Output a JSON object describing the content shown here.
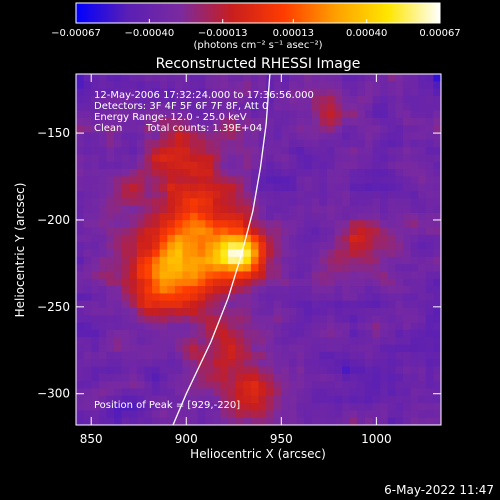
{
  "chart_data": {
    "type": "heatmap",
    "title": "Reconstructed RHESSI Image",
    "xlabel": "Heliocentric X (arcsec)",
    "ylabel": "Heliocentric Y (arcsec)",
    "xlim": [
      842,
      1034
    ],
    "ylim": [
      -318,
      -116
    ],
    "x_ticks": [
      850,
      900,
      950,
      1000
    ],
    "y_ticks": [
      -300,
      -250,
      -200,
      -150
    ],
    "x_tick_labels": [
      "850",
      "900",
      "950",
      "1000"
    ],
    "y_tick_labels": [
      "−300",
      "−250",
      "−200",
      "−150"
    ],
    "colorbar": {
      "min": -0.00067,
      "max": 0.00067,
      "tick_values": [
        -0.00067,
        -0.0004,
        -0.00013,
        0.00013,
        0.0004,
        0.00067
      ],
      "tick_labels": [
        "−0.00067",
        "−0.00040",
        "−0.00013",
        "0.00013",
        "0.00040",
        "0.00067"
      ],
      "units_label": "(photons cm⁻² s⁻¹ asec⁻²)",
      "colors": [
        "#0000ff",
        "#5a1fb4",
        "#7a2aa0",
        "#c81e1e",
        "#ff3c00",
        "#ffa000",
        "#ffe600",
        "#ffffff"
      ]
    },
    "annotations": {
      "time_range": "12-May-2006 17:32:24.000 to 17:36:56.000",
      "detectors": "Detectors: 3F 4F 5F 6F 7F 8F, Att 0",
      "energy_range": "Energy Range: 12.0 - 25.0 keV",
      "method": "Clean",
      "total_counts": "Total counts: 1.39E+04",
      "peak_position": "Position of Peak = [929,-220]"
    },
    "peak": {
      "x": 929,
      "y": -220
    },
    "limb_curve": [
      [
        893,
        -318
      ],
      [
        900,
        -300
      ],
      [
        913,
        -270
      ],
      [
        922,
        -245
      ],
      [
        929,
        -220
      ],
      [
        935,
        -195
      ],
      [
        939,
        -170
      ],
      [
        942,
        -145
      ],
      [
        944,
        -116
      ]
    ],
    "grid": false
  },
  "footer": {
    "date": "6-May-2022 11:47"
  }
}
